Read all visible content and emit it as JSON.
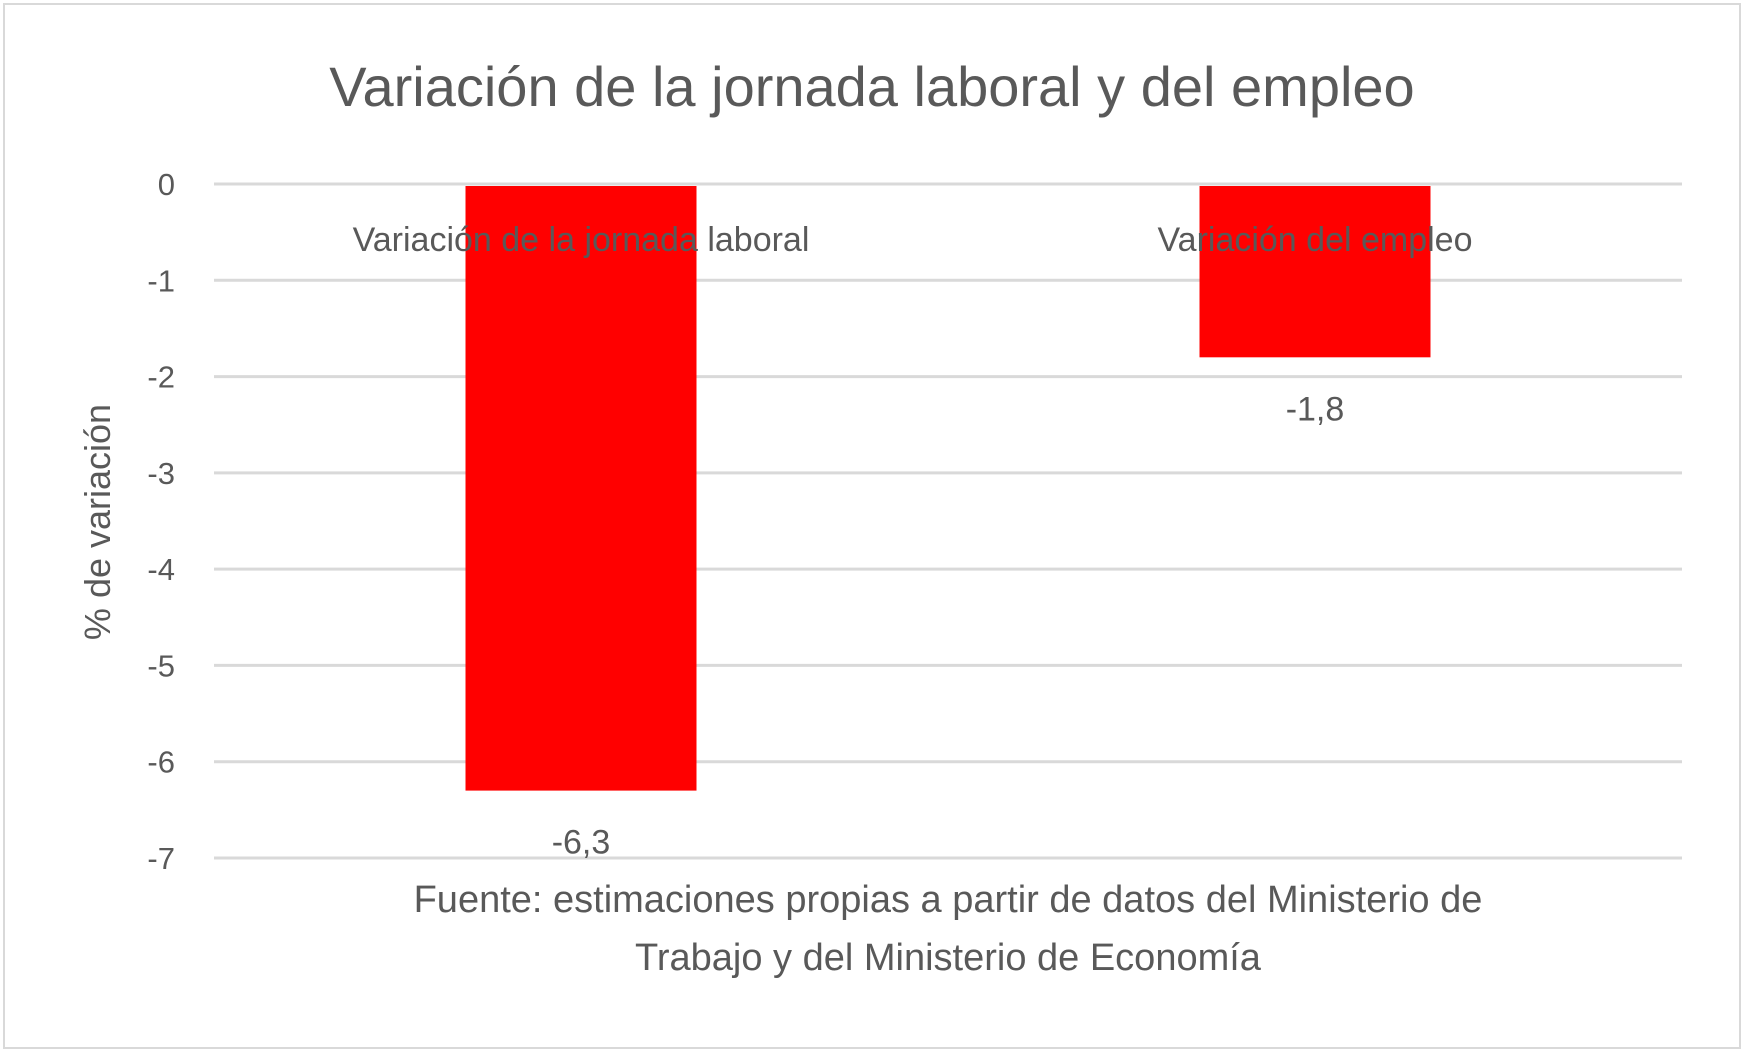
{
  "chart_data": {
    "type": "bar",
    "title": "Variación de la jornada laboral y del empleo",
    "ylabel": "% de variación",
    "xlabel": "Fuente: estimaciones propias a partir de datos del Ministerio de Trabajo y del Ministerio de Economía",
    "xlabel_lines": [
      "Fuente: estimaciones propias a partir de datos del Ministerio de",
      "Trabajo y del Ministerio de Economía"
    ],
    "categories": [
      "Variación de la jornada laboral",
      "Variación del empleo"
    ],
    "values": [
      -6.3,
      -1.8
    ],
    "data_labels": [
      "-6,3",
      "-1,8"
    ],
    "ylim": [
      -7,
      0
    ],
    "yticks": [
      "0",
      "-1",
      "-2",
      "-3",
      "-4",
      "-5",
      "-6",
      "-7"
    ],
    "grid": true,
    "legend": "none",
    "colors": {
      "bar": "#FF0000",
      "grid": "#D9D9D9",
      "text": "#595959",
      "border": "#D9D9D9"
    }
  }
}
